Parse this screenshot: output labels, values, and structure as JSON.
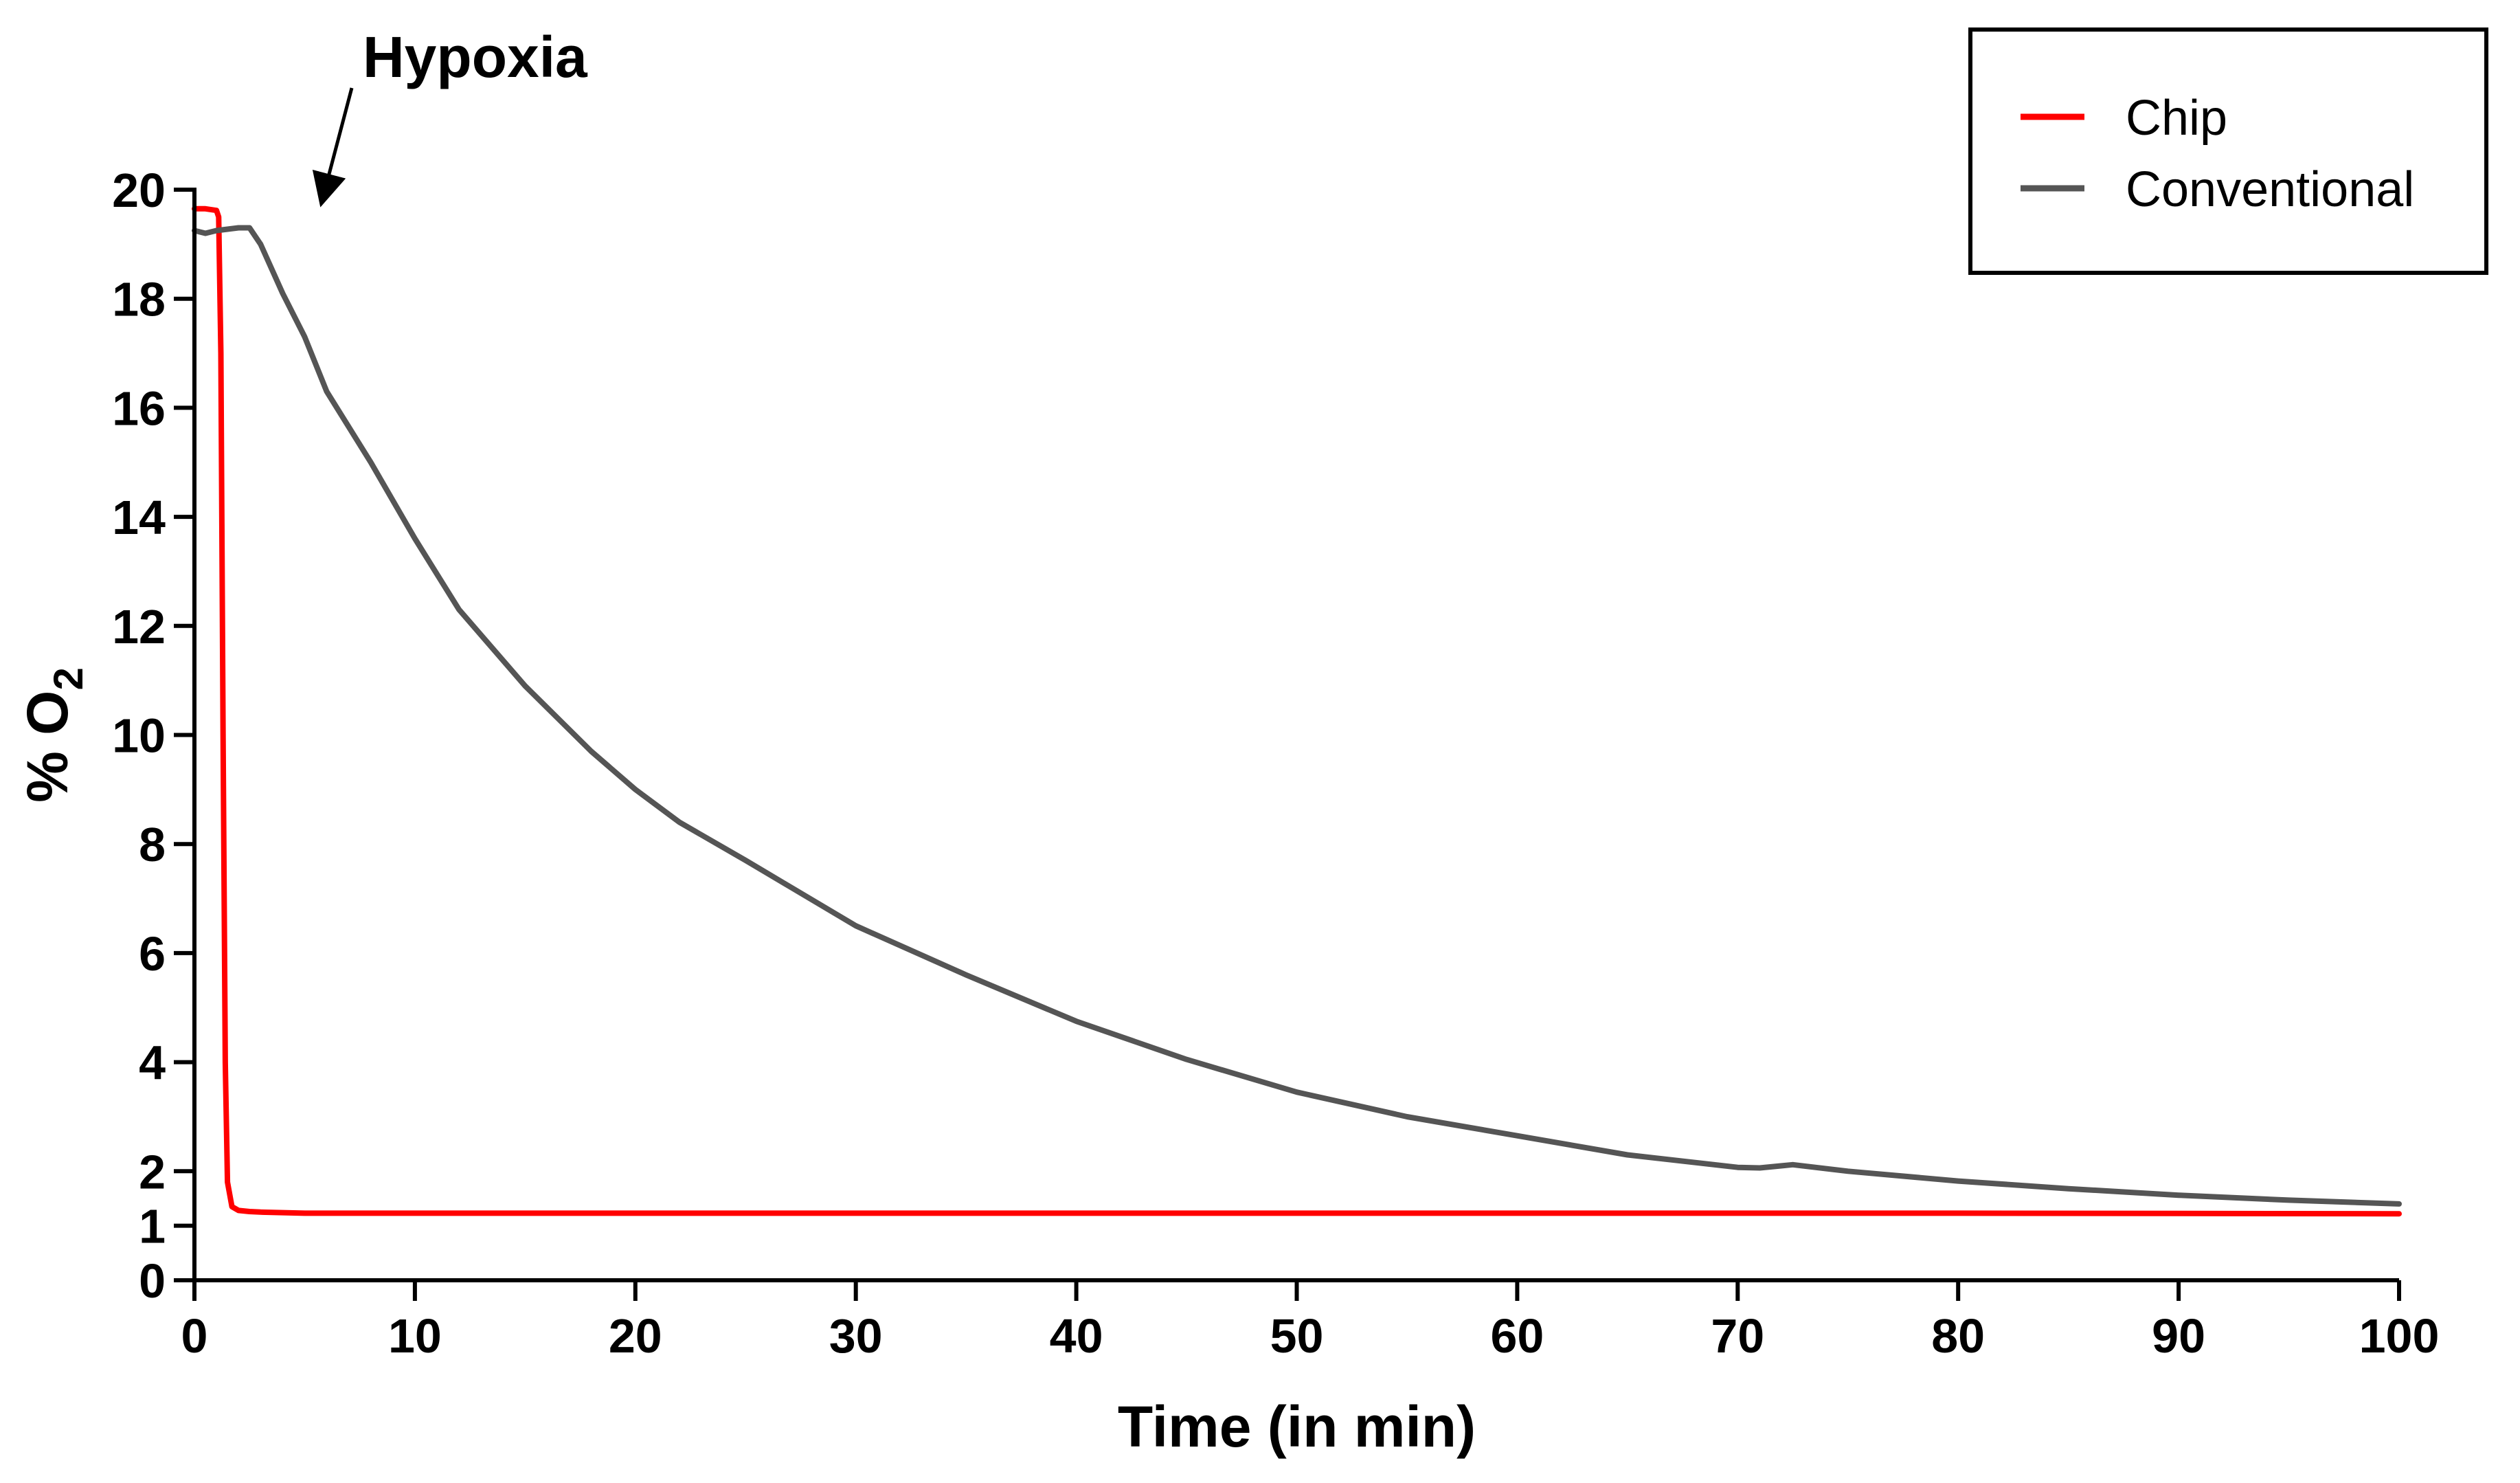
{
  "chart_data": {
    "type": "line",
    "title": "",
    "xlabel": "Time (in min)",
    "ylabel_main": "% O",
    "ylabel_sub": "2",
    "xlim": [
      0,
      100
    ],
    "ylim": [
      0,
      20
    ],
    "x_ticks": [
      0,
      10,
      20,
      30,
      40,
      50,
      60,
      70,
      80,
      90,
      100
    ],
    "y_ticks": [
      0,
      1,
      2,
      4,
      6,
      8,
      10,
      12,
      14,
      16,
      18,
      20
    ],
    "grid": false,
    "legend_position": "top-right",
    "annotation": {
      "text": "Hypoxia",
      "points_to": [
        2.8,
        19.9
      ]
    },
    "series": [
      {
        "name": "Chip",
        "color": "#ff0000",
        "x": [
          0,
          0.5,
          1.0,
          1.1,
          1.2,
          1.3,
          1.4,
          1.5,
          1.7,
          2.0,
          2.5,
          3,
          5,
          10,
          20,
          40,
          60,
          80,
          100
        ],
        "y": [
          19.65,
          19.65,
          19.62,
          19.5,
          17.0,
          10.0,
          4.0,
          1.8,
          1.35,
          1.28,
          1.26,
          1.25,
          1.23,
          1.23,
          1.23,
          1.23,
          1.23,
          1.23,
          1.22
        ]
      },
      {
        "name": "Conventional",
        "color": "#555555",
        "x": [
          0,
          0.5,
          1,
          2,
          2.5,
          3,
          4,
          5,
          6,
          8,
          10,
          12,
          15,
          18,
          20,
          22,
          25,
          30,
          35,
          40,
          45,
          50,
          55,
          60,
          65,
          70,
          71,
          72,
          72.5,
          75,
          80,
          85,
          90,
          95,
          100
        ],
        "y": [
          19.25,
          19.2,
          19.25,
          19.3,
          19.3,
          19.0,
          18.1,
          17.3,
          16.3,
          15.0,
          13.6,
          12.3,
          10.9,
          9.7,
          9.0,
          8.4,
          7.7,
          6.5,
          5.6,
          4.75,
          4.05,
          3.45,
          3.0,
          2.65,
          2.3,
          2.07,
          2.06,
          2.1,
          2.12,
          2.0,
          1.82,
          1.68,
          1.56,
          1.47,
          1.4
        ]
      }
    ]
  }
}
